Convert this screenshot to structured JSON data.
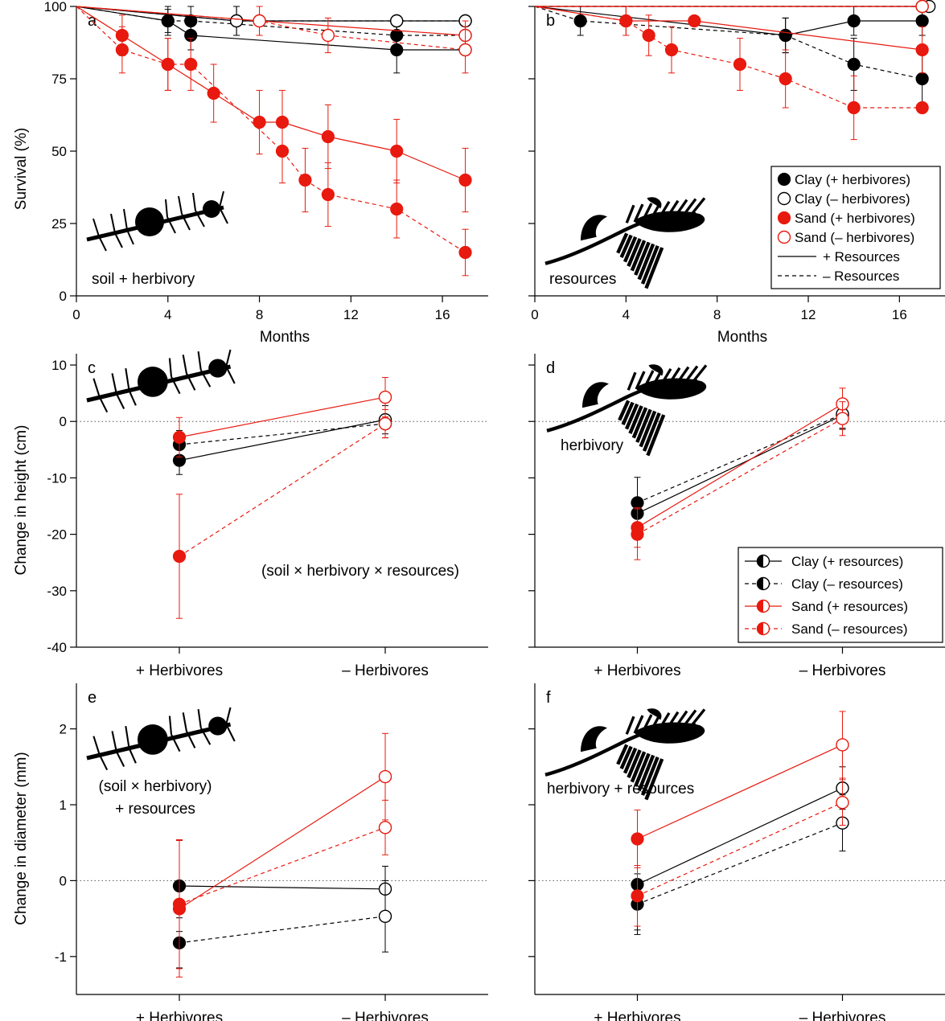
{
  "colors": {
    "clay": "#000000",
    "sand": "#e8190e",
    "ref": "#555555"
  },
  "legend_b": {
    "entries": [
      {
        "label": "Clay (+ herbivores)",
        "soil": "clay",
        "marker": "filled"
      },
      {
        "label": "Clay (– herbivores)",
        "soil": "clay",
        "marker": "open"
      },
      {
        "label": "Sand (+ herbivores)",
        "soil": "sand",
        "marker": "filled"
      },
      {
        "label": "Sand (– herbivores)",
        "soil": "sand",
        "marker": "open"
      },
      {
        "label": "+ Resources",
        "soil": "clay",
        "marker": "none",
        "dash": false
      },
      {
        "label": "– Resources",
        "soil": "clay",
        "marker": "none",
        "dash": true
      }
    ]
  },
  "legend_d": {
    "entries": [
      {
        "label": "Clay (+ resources)",
        "soil": "clay",
        "marker": "half",
        "dash": false
      },
      {
        "label": "Clay (– resources)",
        "soil": "clay",
        "marker": "half",
        "dash": true
      },
      {
        "label": "Sand (+ resources)",
        "soil": "sand",
        "marker": "half",
        "dash": false
      },
      {
        "label": "Sand (– resources)",
        "soil": "sand",
        "marker": "half",
        "dash": true
      }
    ]
  },
  "chart_data": [
    {
      "panel": "a",
      "type": "line",
      "note": "soil + herbivory",
      "xlabel": "Months",
      "ylabel": "Survival (%)",
      "xlim": [
        0,
        18
      ],
      "ylim": [
        0,
        100
      ],
      "xticks": [
        "0",
        "4",
        "8",
        "12",
        "16"
      ],
      "xtick_values": [
        0,
        4,
        8,
        12,
        16
      ],
      "yticks": [
        "0",
        "25",
        "50",
        "75",
        "100"
      ],
      "ytick_values": [
        0,
        25,
        50,
        75,
        100
      ],
      "series": [
        {
          "soil": "clay",
          "herb": "+",
          "res": "+",
          "x": [
            0,
            4,
            5,
            14,
            17
          ],
          "y": [
            100,
            95,
            90,
            85,
            85
          ],
          "err": [
            0,
            4,
            5,
            8,
            0
          ]
        },
        {
          "soil": "clay",
          "herb": "+",
          "res": "-",
          "x": [
            0,
            4,
            5,
            14,
            17
          ],
          "y": [
            100,
            95,
            95,
            90,
            90
          ],
          "err": [
            0,
            5,
            5,
            6,
            0
          ]
        },
        {
          "soil": "clay",
          "herb": "-",
          "res": "+",
          "x": [
            0,
            7,
            14,
            17
          ],
          "y": [
            100,
            95,
            95,
            95
          ],
          "err": [
            0,
            5,
            0,
            0
          ]
        },
        {
          "soil": "clay",
          "herb": "-",
          "res": "-",
          "x": [
            0,
            7,
            14,
            17
          ],
          "y": [
            100,
            95,
            95,
            95
          ],
          "err": [
            0,
            5,
            0,
            0
          ]
        },
        {
          "soil": "sand",
          "herb": "+",
          "res": "+",
          "x": [
            0,
            2,
            4,
            6,
            8,
            9,
            11,
            14,
            17
          ],
          "y": [
            100,
            90,
            80,
            70,
            60,
            60,
            55,
            50,
            40
          ],
          "err": [
            0,
            7,
            9,
            10,
            11,
            11,
            11,
            11,
            11
          ]
        },
        {
          "soil": "sand",
          "herb": "+",
          "res": "-",
          "x": [
            0,
            2,
            4,
            5,
            9,
            10,
            11,
            14,
            17
          ],
          "y": [
            100,
            85,
            80,
            80,
            50,
            40,
            35,
            30,
            15
          ],
          "err": [
            0,
            8,
            9,
            9,
            11,
            11,
            11,
            10,
            8
          ]
        },
        {
          "soil": "sand",
          "herb": "-",
          "res": "+",
          "x": [
            0,
            8,
            17
          ],
          "y": [
            100,
            95,
            90
          ],
          "err": [
            0,
            5,
            5
          ]
        },
        {
          "soil": "sand",
          "herb": "-",
          "res": "-",
          "x": [
            0,
            8,
            11,
            17
          ],
          "y": [
            100,
            95,
            90,
            85
          ],
          "err": [
            0,
            5,
            6,
            8
          ]
        }
      ]
    },
    {
      "panel": "b",
      "type": "line",
      "note": "resources",
      "xlabel": "Months",
      "ylabel": "",
      "xlim": [
        0,
        18
      ],
      "ylim": [
        0,
        100
      ],
      "xticks": [
        "0",
        "4",
        "8",
        "12",
        "16"
      ],
      "xtick_values": [
        0,
        4,
        8,
        12,
        16
      ],
      "yticks": [
        "",
        "",
        "",
        "",
        ""
      ],
      "ytick_values": [
        0,
        25,
        50,
        75,
        100
      ],
      "series": [
        {
          "soil": "clay",
          "herb": "+",
          "res": "+",
          "x": [
            0,
            11,
            14,
            17
          ],
          "y": [
            100,
            90,
            95,
            95
          ],
          "err": [
            0,
            6,
            5,
            5
          ]
        },
        {
          "soil": "clay",
          "herb": "+",
          "res": "-",
          "x": [
            0,
            2,
            11,
            14,
            17
          ],
          "y": [
            100,
            95,
            90,
            80,
            75
          ],
          "err": [
            0,
            5,
            6,
            9,
            9
          ]
        },
        {
          "soil": "clay",
          "herb": "-",
          "res": "+",
          "x": [
            0,
            17
          ],
          "y": [
            100,
            100
          ],
          "err": [
            0,
            0
          ]
        },
        {
          "soil": "clay",
          "herb": "-",
          "res": "-",
          "x": [
            0,
            17.3
          ],
          "y": [
            100,
            100
          ],
          "err": [
            0,
            0
          ]
        },
        {
          "soil": "sand",
          "herb": "+",
          "res": "+",
          "x": [
            0,
            4,
            7,
            17
          ],
          "y": [
            100,
            95,
            95,
            85
          ],
          "err": [
            0,
            5,
            0,
            8
          ]
        },
        {
          "soil": "sand",
          "herb": "+",
          "res": "-",
          "x": [
            0,
            4,
            5,
            6,
            9,
            11,
            14,
            17
          ],
          "y": [
            100,
            95,
            90,
            85,
            80,
            75,
            65,
            65
          ],
          "err": [
            0,
            5,
            7,
            8,
            9,
            10,
            11,
            0
          ]
        },
        {
          "soil": "sand",
          "herb": "-",
          "res": "+",
          "x": [
            0,
            17
          ],
          "y": [
            100,
            100
          ],
          "err": [
            0,
            0
          ]
        },
        {
          "soil": "sand",
          "herb": "-",
          "res": "-",
          "x": [
            0,
            17
          ],
          "y": [
            100,
            100
          ],
          "err": [
            0,
            0
          ]
        }
      ]
    },
    {
      "panel": "c",
      "type": "line",
      "note": "(soil × herbivory × resources)",
      "xlabel": "",
      "ylabel": "Change in height (cm)",
      "categories": [
        "+ Herbivores",
        "– Herbivores"
      ],
      "ylim": [
        -40,
        12
      ],
      "yticks": [
        "10",
        "0",
        "-10",
        "-20",
        "-30",
        "-40"
      ],
      "ytick_values": [
        10,
        0,
        -10,
        -20,
        -30,
        -40
      ],
      "reference_line": 0,
      "series": [
        {
          "soil": "clay",
          "res": "+",
          "values": [
            -6.9,
            0.3
          ],
          "err": [
            2.5,
            2.5
          ]
        },
        {
          "soil": "clay",
          "res": "-",
          "values": [
            -4.1,
            -0.4
          ],
          "err": [
            2.5,
            2.5
          ]
        },
        {
          "soil": "sand",
          "res": "+",
          "values": [
            -2.8,
            4.3
          ],
          "err": [
            3.5,
            3.5
          ]
        },
        {
          "soil": "sand",
          "res": "-",
          "values": [
            -23.9,
            -0.4
          ],
          "err": [
            11,
            2.5
          ]
        }
      ]
    },
    {
      "panel": "d",
      "type": "line",
      "note": "herbivory",
      "xlabel": "",
      "ylabel": "",
      "categories": [
        "+ Herbivores",
        "– Herbivores"
      ],
      "ylim": [
        -40,
        12
      ],
      "yticks": [
        "",
        "",
        "",
        "",
        "",
        ""
      ],
      "ytick_values": [
        10,
        0,
        -10,
        -20,
        -30,
        -40
      ],
      "reference_line": 0,
      "series": [
        {
          "soil": "clay",
          "res": "+",
          "values": [
            -16.3,
            1.1
          ],
          "err": [
            2.5,
            2.5
          ]
        },
        {
          "soil": "clay",
          "res": "-",
          "values": [
            -14.4,
            1.3
          ],
          "err": [
            4.5,
            2.5
          ]
        },
        {
          "soil": "sand",
          "res": "+",
          "values": [
            -18.8,
            3.1
          ],
          "err": [
            3.5,
            2.8
          ]
        },
        {
          "soil": "sand",
          "res": "-",
          "values": [
            -20.0,
            0.5
          ],
          "err": [
            4.5,
            3.0
          ]
        }
      ]
    },
    {
      "panel": "e",
      "type": "line",
      "note_lines": [
        "(soil × herbivory)",
        "+ resources"
      ],
      "xlabel": "",
      "ylabel": "Change in diameter (mm)",
      "categories": [
        "+ Herbivores",
        "– Herbivores"
      ],
      "ylim": [
        -1.5,
        2.6
      ],
      "yticks": [
        "2",
        "1",
        "0",
        "-1"
      ],
      "ytick_values": [
        2,
        1,
        0,
        -1
      ],
      "reference_line": 0,
      "series": [
        {
          "soil": "clay",
          "res": "+",
          "values": [
            -0.07,
            -0.11
          ],
          "err": [
            0.6,
            0.3
          ]
        },
        {
          "soil": "clay",
          "res": "-",
          "values": [
            -0.82,
            -0.47
          ],
          "err": [
            0.33,
            0.47
          ]
        },
        {
          "soil": "sand",
          "res": "+",
          "values": [
            -0.37,
            1.37
          ],
          "err": [
            0.9,
            0.57
          ]
        },
        {
          "soil": "sand",
          "res": "-",
          "values": [
            -0.31,
            0.7
          ],
          "err": [
            0.85,
            0.36
          ]
        }
      ]
    },
    {
      "panel": "f",
      "type": "line",
      "note": "herbivory + resources",
      "xlabel": "",
      "ylabel": "",
      "categories": [
        "+ Herbivores",
        "– Herbivores"
      ],
      "ylim": [
        -1.5,
        2.6
      ],
      "yticks": [
        "",
        "",
        "",
        ""
      ],
      "ytick_values": [
        2,
        1,
        0,
        -1
      ],
      "reference_line": 0,
      "series": [
        {
          "soil": "clay",
          "res": "+",
          "values": [
            -0.05,
            1.22
          ],
          "err": [
            0.6,
            0.28
          ]
        },
        {
          "soil": "clay",
          "res": "-",
          "values": [
            -0.31,
            0.76
          ],
          "err": [
            0.4,
            0.37
          ]
        },
        {
          "soil": "sand",
          "res": "+",
          "values": [
            0.55,
            1.79
          ],
          "err": [
            0.38,
            0.44
          ]
        },
        {
          "soil": "sand",
          "res": "-",
          "values": [
            -0.2,
            1.03
          ],
          "err": [
            0.4,
            0.3
          ]
        }
      ]
    }
  ]
}
